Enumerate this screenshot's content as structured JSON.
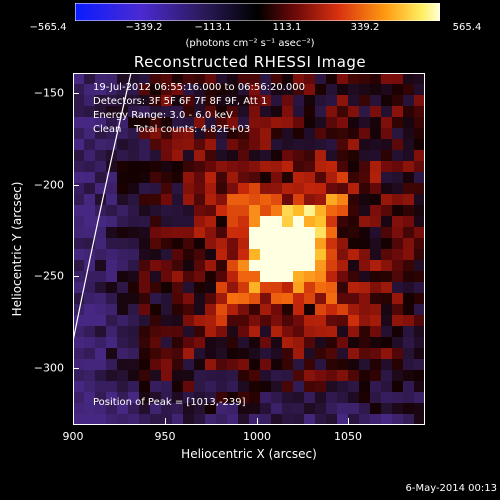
{
  "colorbar": {
    "ticks": [
      "−565.4",
      "−339.2",
      "−113.1",
      "113.1",
      "339.2",
      "565.4"
    ],
    "units_label": "(photons cm⁻² s⁻¹ asec⁻²)"
  },
  "title": "Reconstructed RHESSI Image",
  "info": {
    "time": "19-Jul-2012 06:55:16.000 to 06:56:20.000",
    "detectors": "Detectors: 3F 5F 6F 7F 8F 9F, Att 1",
    "energy": "Energy Range: 3.0 - 6.0 keV",
    "clean": "Clean    Total counts: 4.82E+03"
  },
  "peak_label": "Position of Peak = [1013,-239]",
  "axes": {
    "xlabel": "Heliocentric X (arcsec)",
    "ylabel": "Heliocentric Y (arcsec)",
    "xticks": [
      "900",
      "950",
      "1000",
      "1050"
    ],
    "yticks": [
      "−150",
      "−200",
      "−250",
      "−300"
    ],
    "xlim": [
      900,
      1092
    ],
    "ylim": [
      -331,
      -139
    ]
  },
  "footer_date": "6-May-2014 00:13",
  "colors": {
    "background": "#000000",
    "limb_line": "#ffffff"
  }
}
